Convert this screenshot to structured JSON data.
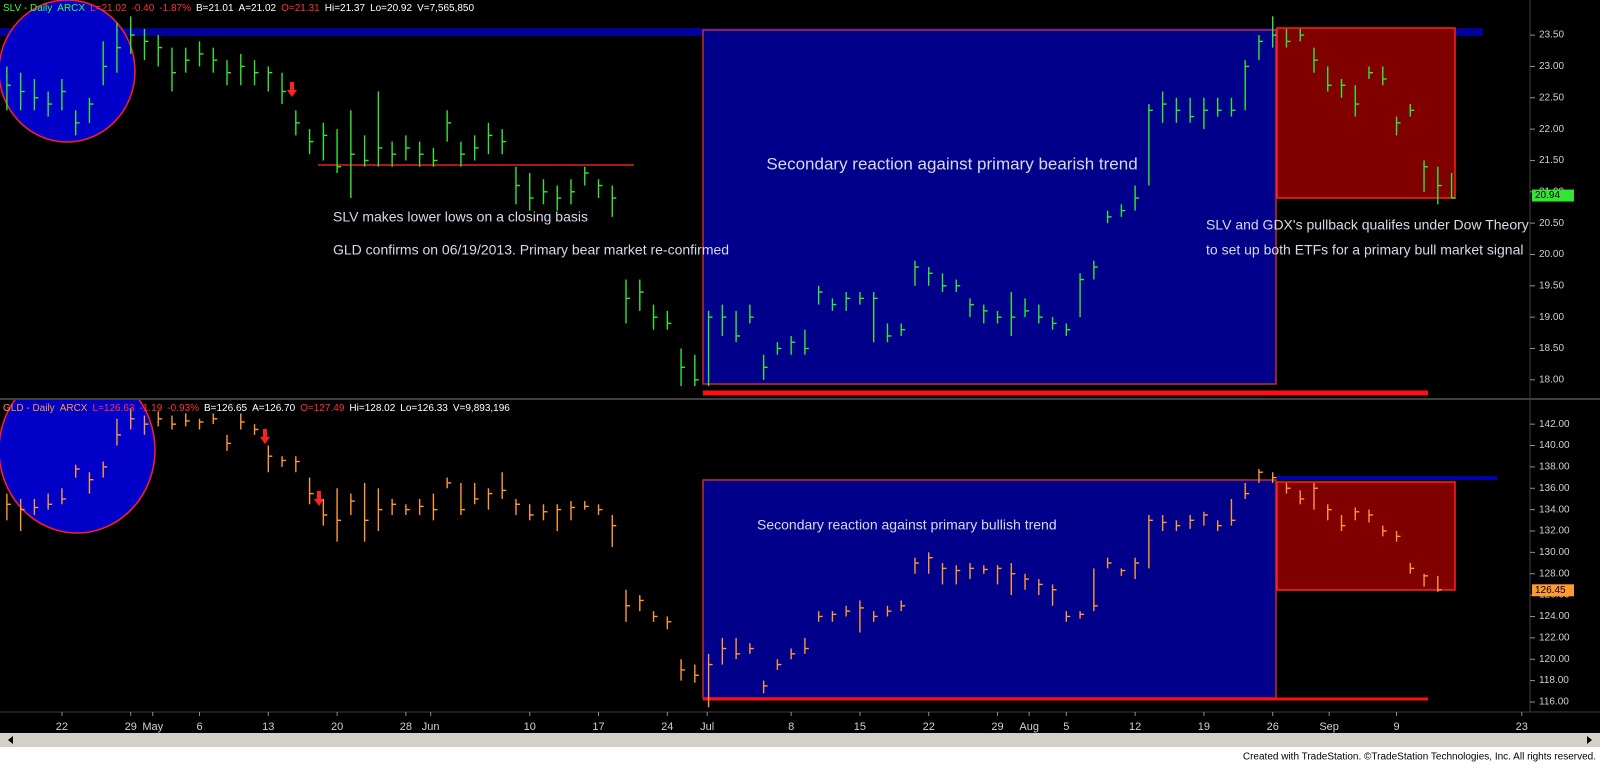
{
  "chart_data": [
    {
      "type": "ohlc",
      "title_parts": [
        {
          "text": "SLV - Daily",
          "color": "#33ff33"
        },
        {
          "text": "ARCX",
          "color": "#33ff33"
        },
        {
          "text": "L=21.02",
          "color": "#ff3333"
        },
        {
          "text": "-0.40",
          "color": "#ff3333"
        },
        {
          "text": "-1.87%",
          "color": "#ff3333"
        },
        {
          "text": "B=21.01",
          "color": "#ffffff"
        },
        {
          "text": "A=21.02",
          "color": "#ffffff"
        },
        {
          "text": "O=21.31",
          "color": "#ff3333"
        },
        {
          "text": "Hi=21.37",
          "color": "#ffffff"
        },
        {
          "text": "Lo=20.92",
          "color": "#ffffff"
        },
        {
          "text": "V=7,565,850",
          "color": "#ffffff"
        }
      ],
      "annotations": [
        "Secondary reaction against primary bearish trend",
        "SLV makes lower lows on a closing basis",
        "GLD confirms on 06/19/2013. Primary bear market re-confirmed",
        "SLV and GDX's pullback qualifes under Dow Theory",
        "to set up both ETFs for a primary bull market signal"
      ],
      "color": "#33e633",
      "x": [
        -1,
        0,
        1,
        2,
        3,
        4,
        5,
        6,
        7,
        8,
        9,
        10,
        11,
        12,
        13,
        14,
        15,
        16,
        17,
        18,
        19,
        20,
        21,
        22,
        23,
        24,
        25,
        26,
        27,
        28,
        29,
        30,
        31,
        32,
        33,
        34,
        35,
        36,
        37,
        38,
        39,
        40,
        41,
        42,
        43,
        44,
        45,
        46,
        47,
        48,
        49,
        50,
        51,
        52,
        53,
        54,
        55,
        56,
        57,
        58,
        59,
        60,
        61,
        62,
        63,
        64,
        65,
        66,
        67,
        68,
        69,
        70,
        71,
        72,
        73,
        74,
        75,
        76,
        77,
        78,
        79,
        80,
        81,
        82,
        83,
        84,
        85,
        86,
        87,
        88,
        89,
        90,
        91,
        92,
        93,
        94,
        95,
        96,
        97,
        98,
        99,
        100,
        101,
        102,
        103,
        104
      ],
      "high": [
        23.0,
        22.9,
        22.8,
        22.6,
        22.8,
        22.3,
        22.5,
        23.4,
        23.7,
        23.8,
        23.6,
        23.5,
        23.3,
        23.3,
        23.4,
        23.3,
        23.1,
        23.2,
        23.1,
        23.0,
        22.9,
        22.3,
        22.0,
        22.1,
        22.0,
        22.3,
        21.9,
        22.6,
        21.8,
        21.9,
        21.8,
        21.7,
        22.3,
        21.8,
        21.9,
        22.1,
        22.0,
        21.4,
        21.3,
        21.2,
        21.1,
        21.2,
        21.4,
        21.2,
        21.1,
        19.6,
        19.6,
        19.2,
        19.1,
        18.5,
        18.4,
        19.1,
        19.2,
        19.1,
        19.2,
        18.4,
        18.6,
        18.7,
        18.8,
        19.5,
        19.3,
        19.4,
        19.4,
        19.4,
        18.9,
        18.9,
        19.9,
        19.8,
        19.7,
        19.6,
        19.3,
        19.2,
        19.1,
        19.4,
        19.3,
        19.2,
        19.0,
        18.9,
        19.7,
        19.9,
        20.7,
        20.8,
        21.1,
        22.4,
        22.6,
        22.5,
        22.5,
        22.5,
        22.5,
        22.5,
        23.1,
        23.5,
        23.8,
        23.6,
        23.6,
        23.3,
        23.0,
        22.8,
        22.7,
        23.0,
        23.0,
        22.2,
        22.4,
        21.5,
        21.4,
        21.3
      ],
      "low": [
        22.3,
        22.3,
        22.3,
        22.2,
        22.3,
        21.9,
        22.1,
        22.7,
        22.9,
        23.2,
        23.1,
        23.0,
        22.6,
        22.9,
        23.0,
        22.9,
        22.7,
        22.7,
        22.7,
        22.6,
        22.4,
        21.9,
        21.6,
        21.5,
        21.3,
        20.9,
        21.4,
        21.4,
        21.4,
        21.5,
        21.4,
        21.4,
        21.8,
        21.4,
        21.5,
        21.6,
        21.6,
        20.8,
        20.7,
        20.8,
        20.7,
        20.8,
        21.1,
        20.9,
        20.6,
        18.9,
        19.1,
        18.8,
        18.8,
        17.9,
        17.9,
        17.9,
        18.7,
        18.6,
        18.9,
        18.0,
        18.4,
        18.4,
        18.4,
        19.2,
        19.1,
        19.1,
        19.2,
        18.6,
        18.6,
        18.7,
        19.5,
        19.5,
        19.4,
        19.4,
        19.0,
        18.9,
        18.9,
        18.7,
        19.0,
        18.9,
        18.8,
        18.7,
        19.0,
        19.6,
        20.5,
        20.6,
        20.7,
        21.1,
        22.1,
        22.1,
        22.1,
        22.0,
        22.2,
        22.2,
        22.3,
        23.1,
        23.3,
        23.3,
        23.4,
        22.9,
        22.6,
        22.5,
        22.2,
        22.8,
        22.7,
        21.9,
        22.2,
        21.0,
        20.8,
        20.9
      ],
      "close": [
        22.7,
        22.6,
        22.5,
        22.4,
        22.6,
        22.1,
        22.4,
        23.0,
        23.3,
        23.5,
        23.4,
        23.3,
        22.9,
        23.1,
        23.2,
        23.1,
        22.9,
        23.0,
        22.9,
        22.9,
        22.6,
        22.1,
        21.8,
        21.9,
        21.4,
        21.6,
        21.5,
        21.7,
        21.6,
        21.7,
        21.6,
        21.5,
        22.1,
        21.6,
        21.7,
        21.9,
        21.8,
        21.1,
        20.9,
        21.0,
        20.9,
        21.0,
        21.3,
        21.1,
        20.9,
        19.3,
        19.4,
        19.0,
        18.9,
        18.2,
        18.0,
        19.0,
        19.0,
        18.7,
        19.0,
        18.2,
        18.5,
        18.6,
        18.5,
        19.4,
        19.2,
        19.3,
        19.3,
        19.3,
        18.7,
        18.8,
        19.8,
        19.7,
        19.5,
        19.5,
        19.2,
        19.1,
        19.0,
        19.0,
        19.1,
        19.0,
        18.9,
        18.8,
        19.6,
        19.8,
        20.6,
        20.7,
        20.9,
        22.3,
        22.4,
        22.3,
        22.2,
        22.3,
        22.3,
        22.3,
        23.0,
        23.4,
        23.5,
        23.4,
        23.5,
        23.1,
        22.7,
        22.7,
        22.4,
        22.9,
        22.8,
        22.1,
        22.3,
        21.4,
        21.1,
        20.9
      ],
      "last_price": 20.94,
      "last_price_color": "#33e633",
      "xlim": [
        -1.5,
        109.7
      ],
      "ylim": [
        17.71,
        24.06
      ],
      "yticks": [
        {
          "value": 18,
          "label": "18.00"
        },
        {
          "value": 18.5,
          "label": "18.50"
        },
        {
          "value": 19,
          "label": "19.00"
        },
        {
          "value": 19.5,
          "label": "19.50"
        },
        {
          "value": 20,
          "label": "20.00"
        },
        {
          "value": 20.5,
          "label": "20.50"
        },
        {
          "value": 21,
          "label": "21.00"
        },
        {
          "value": 21.5,
          "label": "21.50"
        },
        {
          "value": 22,
          "label": "22.00"
        },
        {
          "value": 22.5,
          "label": "22.50"
        },
        {
          "value": 23,
          "label": "23.00"
        },
        {
          "value": 23.5,
          "label": "23.50"
        }
      ]
    },
    {
      "type": "ohlc",
      "title_parts": [
        {
          "text": "GLD - Daily",
          "color": "#ff9933"
        },
        {
          "text": "ARCX",
          "color": "#ff9933"
        },
        {
          "text": "L=126.63",
          "color": "#ff3333"
        },
        {
          "text": "-1.19",
          "color": "#ff3333"
        },
        {
          "text": "-0.93%",
          "color": "#ff3333"
        },
        {
          "text": "B=126.65",
          "color": "#ffffff"
        },
        {
          "text": "A=126.70",
          "color": "#ffffff"
        },
        {
          "text": "O=127.49",
          "color": "#ff3333"
        },
        {
          "text": "Hi=128.02",
          "color": "#ffffff"
        },
        {
          "text": "Lo=126.33",
          "color": "#ffffff"
        },
        {
          "text": "V=9,893,196",
          "color": "#ffffff"
        }
      ],
      "annotations": [
        "Secondary reaction against primary bullish trend"
      ],
      "color": "#ff9933",
      "x": [
        -1,
        0,
        1,
        2,
        3,
        4,
        5,
        6,
        7,
        8,
        9,
        10,
        11,
        12,
        13,
        14,
        15,
        16,
        17,
        18,
        19,
        20,
        21,
        22,
        23,
        24,
        25,
        26,
        27,
        28,
        29,
        30,
        31,
        32,
        33,
        34,
        35,
        36,
        37,
        38,
        39,
        40,
        41,
        42,
        43,
        44,
        45,
        46,
        47,
        48,
        49,
        50,
        51,
        52,
        53,
        54,
        55,
        56,
        57,
        58,
        59,
        60,
        61,
        62,
        63,
        64,
        65,
        66,
        67,
        68,
        69,
        70,
        71,
        72,
        73,
        74,
        75,
        76,
        77,
        78,
        79,
        80,
        81,
        82,
        83,
        84,
        85,
        86,
        87,
        88,
        89,
        90,
        91,
        92,
        93,
        94,
        95,
        96,
        97,
        98,
        99,
        100,
        101,
        102,
        103
      ],
      "high": [
        135.5,
        135.0,
        135.0,
        135.5,
        136.0,
        138.2,
        137.5,
        138.5,
        142.5,
        143.5,
        142.8,
        143.2,
        142.8,
        143.0,
        142.5,
        143.0,
        141.0,
        143.0,
        142.0,
        140.0,
        139.0,
        139.0,
        137.0,
        135.0,
        136.0,
        135.5,
        136.5,
        136.0,
        135.0,
        134.5,
        135.0,
        135.5,
        137.0,
        136.5,
        136.5,
        136.0,
        137.5,
        135.0,
        134.5,
        134.5,
        134.5,
        134.8,
        134.8,
        134.5,
        133.5,
        126.5,
        126.0,
        124.5,
        124.0,
        120.0,
        119.5,
        120.5,
        122.0,
        122.0,
        121.5,
        118.0,
        120.0,
        121.0,
        122.0,
        124.5,
        124.5,
        125.0,
        125.5,
        124.5,
        125.0,
        125.5,
        129.5,
        130.0,
        129.0,
        128.8,
        129.0,
        128.8,
        128.8,
        129.0,
        128.0,
        127.5,
        127.0,
        124.5,
        124.5,
        128.5,
        129.5,
        128.5,
        129.5,
        133.5,
        133.5,
        133.0,
        133.5,
        133.8,
        133.0,
        135.0,
        136.5,
        137.8,
        137.5,
        136.5,
        135.8,
        136.5,
        134.5,
        133.5,
        134.2,
        134.0,
        132.5,
        132.0,
        129.0,
        128.0,
        127.8
      ],
      "low": [
        133.0,
        132.0,
        133.5,
        134.0,
        134.5,
        137.0,
        135.5,
        137.0,
        140.0,
        141.5,
        141.0,
        141.8,
        141.5,
        141.8,
        141.5,
        142.0,
        139.5,
        141.5,
        141.0,
        137.5,
        138.0,
        137.5,
        134.5,
        132.5,
        131.0,
        133.5,
        131.0,
        132.0,
        133.5,
        133.5,
        133.5,
        133.0,
        136.0,
        133.5,
        134.5,
        134.0,
        135.0,
        133.5,
        133.0,
        133.0,
        132.0,
        133.0,
        134.0,
        133.5,
        130.5,
        123.5,
        124.5,
        123.5,
        122.8,
        118.0,
        117.8,
        115.5,
        119.5,
        120.0,
        120.5,
        116.8,
        119.0,
        120.0,
        120.5,
        123.5,
        123.5,
        124.0,
        122.5,
        123.5,
        124.0,
        124.5,
        128.0,
        128.0,
        127.0,
        127.0,
        127.5,
        128.0,
        127.0,
        126.0,
        126.5,
        126.0,
        125.0,
        123.5,
        123.8,
        124.5,
        128.5,
        127.8,
        127.5,
        128.5,
        132.0,
        132.0,
        132.2,
        132.5,
        132.0,
        132.5,
        135.0,
        136.5,
        136.5,
        135.5,
        134.5,
        134.0,
        133.0,
        132.0,
        133.0,
        132.8,
        131.5,
        131.0,
        128.0,
        126.8,
        126.3
      ],
      "close": [
        134.5,
        134.0,
        134.2,
        134.5,
        135.0,
        137.8,
        136.8,
        138.0,
        141.0,
        142.5,
        142.0,
        142.5,
        142.0,
        142.3,
        142.2,
        142.5,
        140.2,
        142.2,
        141.5,
        139.0,
        138.6,
        138.5,
        135.5,
        133.5,
        133.0,
        134.8,
        133.0,
        134.0,
        134.5,
        134.0,
        134.3,
        134.0,
        136.5,
        134.0,
        135.0,
        135.5,
        135.8,
        134.5,
        133.5,
        133.8,
        134.0,
        134.2,
        134.3,
        134.0,
        132.5,
        125.0,
        125.5,
        124.0,
        123.5,
        119.0,
        118.5,
        119.5,
        121.0,
        120.5,
        121.0,
        117.5,
        119.5,
        120.5,
        121.0,
        124.0,
        124.2,
        124.5,
        124.8,
        124.0,
        124.5,
        125.0,
        129.0,
        129.5,
        128.5,
        128.3,
        128.5,
        128.4,
        128.5,
        128.0,
        127.5,
        127.0,
        126.5,
        124.0,
        124.2,
        125.0,
        129.0,
        128.3,
        129.0,
        133.0,
        132.8,
        132.5,
        133.0,
        133.5,
        132.5,
        133.0,
        135.5,
        137.5,
        137.0,
        136.0,
        135.0,
        136.0,
        134.0,
        132.5,
        133.8,
        133.5,
        132.0,
        131.5,
        128.5,
        127.8,
        126.5
      ],
      "last_price": 126.45,
      "last_price_color": "#ff9933",
      "xlim": [
        -1.5,
        109.7
      ],
      "ylim": [
        115.06,
        144.26
      ],
      "yticks": [
        {
          "value": 116,
          "label": "116.00"
        },
        {
          "value": 118,
          "label": "118.00"
        },
        {
          "value": 120,
          "label": "120.00"
        },
        {
          "value": 122,
          "label": "122.00"
        },
        {
          "value": 124,
          "label": "124.00"
        },
        {
          "value": 126,
          "label": "126.00"
        },
        {
          "value": 128,
          "label": "128.00"
        },
        {
          "value": 130,
          "label": "130.00"
        },
        {
          "value": 132,
          "label": "132.00"
        },
        {
          "value": 134,
          "label": "134.00"
        },
        {
          "value": 136,
          "label": "136.00"
        },
        {
          "value": 138,
          "label": "138.00"
        },
        {
          "value": 140,
          "label": "140.00"
        },
        {
          "value": 142,
          "label": "142.00"
        }
      ],
      "xticks": [
        {
          "value": 3,
          "label": "22"
        },
        {
          "value": 8,
          "label": "29"
        },
        {
          "value": 9.6,
          "label": "May"
        },
        {
          "value": 13,
          "label": "6"
        },
        {
          "value": 18,
          "label": "13"
        },
        {
          "value": 23,
          "label": "20"
        },
        {
          "value": 28,
          "label": "28"
        },
        {
          "value": 29.8,
          "label": "Jun"
        },
        {
          "value": 37,
          "label": "10"
        },
        {
          "value": 42,
          "label": "17"
        },
        {
          "value": 47,
          "label": "24"
        },
        {
          "value": 49.9,
          "label": "Jul"
        },
        {
          "value": 56,
          "label": "8"
        },
        {
          "value": 61,
          "label": "15"
        },
        {
          "value": 66,
          "label": "22"
        },
        {
          "value": 71,
          "label": "29"
        },
        {
          "value": 73.3,
          "label": "Aug"
        },
        {
          "value": 76,
          "label": "5"
        },
        {
          "value": 81,
          "label": "12"
        },
        {
          "value": 86,
          "label": "19"
        },
        {
          "value": 91,
          "label": "26"
        },
        {
          "value": 95.1,
          "label": "Sep"
        },
        {
          "value": 100,
          "label": "9"
        },
        {
          "value": 109.1,
          "label": "23"
        }
      ]
    }
  ],
  "footer": "Created with TradeStation. ©TradeStation Technologies, Inc. All rights reserved."
}
